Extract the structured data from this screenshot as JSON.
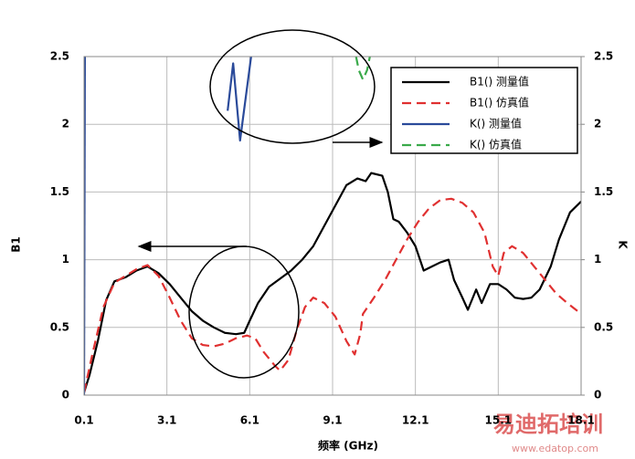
{
  "chart_data": {
    "type": "line",
    "x_label": "频率 (GHz)",
    "y_label": "B1",
    "y2_label": "K",
    "xlim": [
      0.1,
      18.1
    ],
    "xticks": [
      0.1,
      3.1,
      6.1,
      9.1,
      12.1,
      15.1,
      18.1
    ],
    "ylim": [
      0,
      2.5
    ],
    "yticks": [
      0,
      0.5,
      1,
      1.5,
      2,
      2.5
    ],
    "y2lim": [
      0,
      2.5
    ],
    "y2ticks": [
      0,
      0.5,
      1,
      1.5,
      2,
      2.5
    ],
    "grid": true,
    "legend": "upper right",
    "series": [
      {
        "name": "B1() 测量值",
        "color": "#000000",
        "dash": false,
        "x": [
          0.1,
          0.3,
          0.6,
          0.9,
          1.2,
          1.6,
          2.0,
          2.4,
          2.8,
          3.2,
          3.6,
          4.0,
          4.4,
          4.8,
          5.2,
          5.6,
          5.9,
          6.1,
          6.4,
          6.8,
          7.2,
          7.6,
          8.0,
          8.4,
          8.8,
          9.2,
          9.6,
          10.0,
          10.3,
          10.5,
          10.9,
          11.1,
          11.3,
          11.5,
          11.8,
          12.1,
          12.4,
          12.7,
          13.0,
          13.3,
          13.5,
          13.8,
          14.0,
          14.3,
          14.5,
          14.8,
          15.1,
          15.4,
          15.7,
          16.0,
          16.3,
          16.6,
          17.0,
          17.3,
          17.7,
          18.1
        ],
        "values": [
          0.02,
          0.15,
          0.4,
          0.7,
          0.84,
          0.87,
          0.92,
          0.95,
          0.9,
          0.82,
          0.72,
          0.62,
          0.55,
          0.5,
          0.46,
          0.45,
          0.46,
          0.55,
          0.68,
          0.8,
          0.86,
          0.92,
          1.0,
          1.1,
          1.25,
          1.4,
          1.55,
          1.6,
          1.58,
          1.64,
          1.62,
          1.5,
          1.3,
          1.28,
          1.2,
          1.1,
          0.92,
          0.95,
          0.98,
          1.0,
          0.85,
          0.72,
          0.63,
          0.78,
          0.68,
          0.82,
          0.82,
          0.78,
          0.72,
          0.71,
          0.72,
          0.78,
          0.95,
          1.15,
          1.35,
          1.43
        ]
      },
      {
        "name": "B1() 仿真值",
        "color": "#e03030",
        "dash": true,
        "x": [
          0.1,
          0.4,
          0.8,
          1.2,
          1.6,
          2.0,
          2.4,
          2.8,
          3.2,
          3.6,
          4.0,
          4.4,
          4.8,
          5.2,
          5.6,
          6.0,
          6.3,
          6.6,
          7.0,
          7.2,
          7.5,
          7.8,
          8.1,
          8.4,
          8.8,
          9.2,
          9.6,
          9.9,
          10.1,
          10.2,
          10.6,
          11.0,
          11.4,
          11.8,
          12.2,
          12.6,
          13.0,
          13.4,
          13.8,
          14.2,
          14.6,
          14.9,
          15.1,
          15.3,
          15.6,
          16.0,
          16.4,
          16.8,
          17.2,
          17.6,
          18.1
        ],
        "values": [
          0.02,
          0.3,
          0.65,
          0.83,
          0.88,
          0.93,
          0.96,
          0.88,
          0.72,
          0.55,
          0.42,
          0.37,
          0.36,
          0.38,
          0.42,
          0.44,
          0.42,
          0.32,
          0.22,
          0.18,
          0.26,
          0.48,
          0.65,
          0.72,
          0.68,
          0.58,
          0.4,
          0.3,
          0.45,
          0.6,
          0.72,
          0.85,
          1.0,
          1.15,
          1.28,
          1.38,
          1.44,
          1.45,
          1.42,
          1.35,
          1.2,
          0.95,
          0.88,
          1.05,
          1.1,
          1.05,
          0.95,
          0.85,
          0.75,
          0.68,
          0.6
        ]
      },
      {
        "name": "K() 测量值",
        "color": "#2a4a9a",
        "dash": false,
        "axis": "y2",
        "x": [
          0.1,
          0.13,
          5.2,
          5.3,
          5.5,
          5.75,
          6.15
        ],
        "values": [
          0,
          2.5,
          null,
          2.1,
          2.45,
          1.88,
          2.5
        ]
      },
      {
        "name": "K() 仿真值",
        "color": "#3aaa4a",
        "dash": true,
        "axis": "y2",
        "x": [
          9.95,
          10.05,
          10.2,
          10.35,
          10.45
        ],
        "values": [
          2.5,
          2.4,
          2.33,
          2.4,
          2.5
        ]
      }
    ]
  },
  "watermark": {
    "title": "易迪拓培训",
    "url": "www.edatop.com"
  }
}
